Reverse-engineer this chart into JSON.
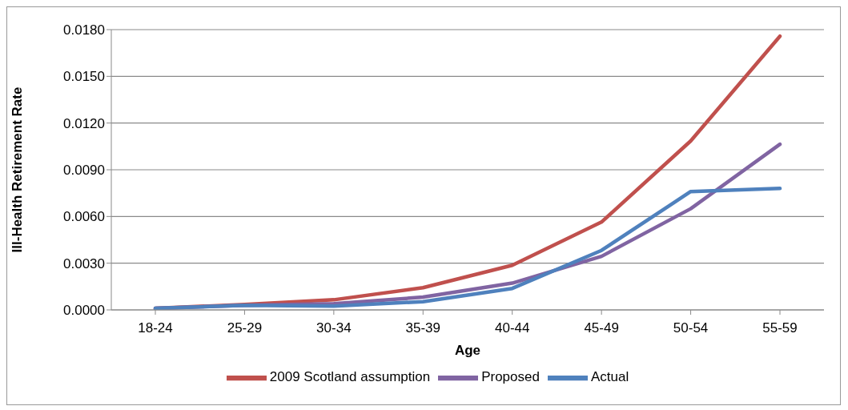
{
  "chart_data": {
    "type": "line",
    "xlabel": "Age",
    "ylabel": "Ill-Health Retirement Rate",
    "categories": [
      "18-24",
      "25-29",
      "30-34",
      "35-39",
      "40-44",
      "45-49",
      "50-54",
      "55-59"
    ],
    "series": [
      {
        "name": "2009 Scotland assumption",
        "color": "#c0504d",
        "values": [
          0.0001,
          0.00035,
          0.00065,
          0.00143,
          0.00287,
          0.00564,
          0.01085,
          0.01758
        ]
      },
      {
        "name": "Proposed",
        "color": "#8064a2",
        "values": [
          0.0001,
          0.0003,
          0.0004,
          0.00082,
          0.00172,
          0.00344,
          0.0065,
          0.01064
        ]
      },
      {
        "name": "Actual",
        "color": "#4f81bd",
        "values": [
          0.0001,
          0.0003,
          0.00025,
          0.00053,
          0.00138,
          0.00382,
          0.0076,
          0.0078
        ]
      }
    ],
    "ylim": [
      0,
      0.018
    ],
    "yticks": [
      {
        "value": 0,
        "label": "0.0000"
      },
      {
        "value": 0.003,
        "label": "0.0030"
      },
      {
        "value": 0.006,
        "label": "0.0060"
      },
      {
        "value": 0.009,
        "label": "0.0090"
      },
      {
        "value": 0.012,
        "label": "0.0120"
      },
      {
        "value": 0.015,
        "label": "0.0150"
      },
      {
        "value": 0.018,
        "label": "0.0180"
      }
    ],
    "grid": "y",
    "legend": "bottom",
    "marker": "none",
    "line_style": "solid"
  }
}
